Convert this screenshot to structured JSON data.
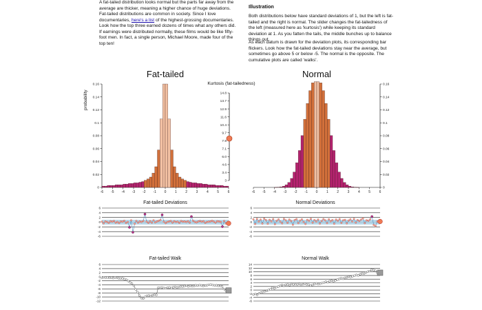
{
  "intro": {
    "p1": "A fat-tailed distribution looks normal but the parts far away from the average are thicker, meaning a higher chance of huge deviations.",
    "p2_before": "Fat-tailed distributions are common in society. Since I love documentaries,",
    "p2_link": "here's a list",
    "p2_after": "of the highest-grossing documentaries. Look how the top three earned dozens of times what any others did. If earnings were distributed normally, these films would be like fifty-foot men. In fact, a single person, Michael Moore, made four of the top ten!"
  },
  "illustration": {
    "heading": "Illustration",
    "p1": "Both distributions below have standard deviations of 1, but the left is fat-tailed and the right is normal. The slider changes the fat-tailedness of the left (measured here as 'kurtosis') while keeping its standard deviation at 1. As you fatten the tails, the middle bunches up to balance things out.",
    "p2": "As each datum is drawn for the deviation plots, its corresponding bar flickers. Look how the fat-tailed deviations stay near the average, but sometimes go above 5 or below -5. The normal is the opposite. The cumulative plots are called 'walks'."
  },
  "titles": {
    "fat": "Fat-tailed",
    "normal": "Normal",
    "kurtosis": "Kurtosis (fat-tailedness)",
    "fat_dev": "Fat-tailed Deviations",
    "normal_dev": "Normal Deviations",
    "fat_walk": "Fat-tailed Walk",
    "normal_walk": "Normal Walk"
  },
  "hist_ylabel": "probability",
  "slider": {
    "ticks": [
      "14.8",
      "13.7",
      "12.9",
      "11.6",
      "10.4",
      "9.7",
      "7.9",
      "7.1",
      "6.0",
      "4.6",
      "3.4",
      "3"
    ],
    "value": 8.4
  },
  "colors": {
    "bar_light": "#f3c1a3",
    "bar_mid": "#d2703a",
    "bar_dark": "#b4236f",
    "dev_band": "#a9cfe4",
    "dev_line": "#4f8fbf",
    "dot": "#b8348a",
    "walk_dot": "#9a9a9a",
    "handle": "#ef7a53"
  },
  "chart_data": [
    {
      "type": "bar",
      "name": "fat-tailed histogram",
      "title": "Fat-tailed",
      "ylabel": "probability",
      "xlim": [
        -6,
        6
      ],
      "ylim": [
        0,
        0.16
      ],
      "xticks": [
        "-6",
        "-5",
        "-4",
        "-3",
        "-2",
        "-1",
        "0",
        "1",
        "2",
        "3",
        "4",
        "5",
        "6"
      ],
      "yticks": [
        "0",
        "0.02",
        "0.04",
        "0.06",
        "0.08",
        "0.1",
        "0.12",
        "0.14",
        "0.16"
      ],
      "x": [
        -5.875,
        -5.625,
        -5.375,
        -5.125,
        -4.875,
        -4.625,
        -4.375,
        -4.125,
        -3.875,
        -3.625,
        -3.375,
        -3.125,
        -2.875,
        -2.625,
        -2.375,
        -2.125,
        -1.875,
        -1.625,
        -1.375,
        -1.125,
        -0.875,
        -0.625,
        -0.375,
        -0.125,
        0.125,
        0.375,
        0.625,
        0.875,
        1.125,
        1.375,
        1.625,
        1.875,
        2.125,
        2.375,
        2.625,
        2.875,
        3.125,
        3.375,
        3.625,
        3.875,
        4.125,
        4.375,
        4.625,
        4.875,
        5.125,
        5.375,
        5.625,
        5.875
      ],
      "values": [
        0.002,
        0.002,
        0.003,
        0.003,
        0.003,
        0.004,
        0.004,
        0.004,
        0.005,
        0.005,
        0.006,
        0.006,
        0.007,
        0.007,
        0.008,
        0.009,
        0.011,
        0.013,
        0.016,
        0.022,
        0.032,
        0.058,
        0.106,
        0.16,
        0.16,
        0.106,
        0.058,
        0.032,
        0.022,
        0.016,
        0.013,
        0.011,
        0.009,
        0.008,
        0.007,
        0.007,
        0.006,
        0.006,
        0.005,
        0.005,
        0.004,
        0.004,
        0.004,
        0.003,
        0.003,
        0.003,
        0.002,
        0.002
      ]
    },
    {
      "type": "bar",
      "name": "normal histogram",
      "title": "Normal",
      "xlim": [
        -6,
        6
      ],
      "ylim": [
        0,
        0.16
      ],
      "xticks": [
        "-6",
        "-5",
        "-4",
        "-3",
        "-2",
        "-1",
        "0",
        "1",
        "2",
        "3",
        "4",
        "5",
        "6"
      ],
      "yticks": [
        "0",
        "0.02",
        "0.04",
        "0.06",
        "0.08",
        "0.1",
        "0.12",
        "0.14",
        "0.16"
      ],
      "x": [
        -3.875,
        -3.625,
        -3.375,
        -3.125,
        -2.875,
        -2.625,
        -2.375,
        -2.125,
        -1.875,
        -1.625,
        -1.375,
        -1.125,
        -0.875,
        -0.625,
        -0.375,
        -0.125,
        0.125,
        0.375,
        0.625,
        0.875,
        1.125,
        1.375,
        1.625,
        1.875,
        2.125,
        2.375,
        2.625,
        2.875,
        3.125,
        3.375,
        3.625,
        3.875
      ],
      "values": [
        0.0001,
        0.0003,
        0.0008,
        0.0019,
        0.0039,
        0.0076,
        0.0139,
        0.0238,
        0.0381,
        0.0571,
        0.0802,
        0.1055,
        0.1299,
        0.1498,
        0.1618,
        0.1637,
        0.1637,
        0.1618,
        0.1498,
        0.1299,
        0.1055,
        0.0802,
        0.0571,
        0.0381,
        0.0238,
        0.0139,
        0.0076,
        0.0039,
        0.0019,
        0.0008,
        0.0003,
        0.0001
      ]
    },
    {
      "type": "line",
      "name": "fat-tailed deviations",
      "title": "Fat-tailed Deviations",
      "ylim": [
        -6,
        6
      ],
      "yticks": [
        "6",
        "4",
        "2",
        "0",
        "-2",
        "-4",
        "-6"
      ],
      "values": [
        0.2,
        -0.5,
        0.3,
        0.1,
        -0.3,
        0.4,
        0.2,
        0.5,
        -0.2,
        0.1,
        -0.4,
        0.3,
        0.2,
        0.6,
        -0.3,
        0.1,
        -2.2,
        0.8,
        -4.3,
        -0.7,
        0.5,
        -0.2,
        0.3,
        0.1,
        0.5,
        3.4,
        0.2,
        -0.3,
        0.4,
        -0.2,
        0.8,
        -0.1,
        0.3,
        0.6,
        0.9,
        3.1,
        0.2,
        -0.4,
        0.1,
        0.3,
        0.5,
        -0.2,
        0.4,
        0.1,
        0.2,
        -0.3,
        0.5,
        0.2,
        0.3,
        0.1,
        0.4,
        -0.2,
        2.4,
        0.6,
        0.1,
        -0.1,
        0.3,
        0.5,
        0.2,
        0.4,
        -0.3,
        0.1,
        0.2,
        0.3,
        0.6,
        0.2,
        -0.2,
        0.4,
        0.3,
        0.1,
        -1.9,
        0.5,
        -0.5
      ]
    },
    {
      "type": "line",
      "name": "normal deviations",
      "title": "Normal Deviations",
      "ylim": [
        -6,
        6
      ],
      "yticks": [
        "6",
        "4",
        "2",
        "0",
        "-2",
        "-4",
        "-6"
      ],
      "values": [
        1.2,
        -0.8,
        1.4,
        0.3,
        1.1,
        -0.6,
        1.5,
        0.9,
        -0.7,
        1.0,
        0.4,
        1.3,
        -0.9,
        0.6,
        1.2,
        0.2,
        -0.5,
        1.4,
        0.8,
        -0.3,
        1.1,
        0.5,
        -1.1,
        0.9,
        1.3,
        -0.4,
        0.7,
        1.2,
        0.1,
        -0.8,
        1.0,
        0.6,
        1.4,
        -0.2,
        0.9,
        0.3,
        1.1,
        -0.6,
        0.5,
        1.3,
        0.8,
        -0.4,
        1.2,
        0.4,
        0.9,
        -0.7,
        1.1,
        0.6,
        1.3,
        -0.3,
        0.8,
        1.0,
        -0.5,
        0.7,
        1.2,
        0.3,
        1.4,
        -0.2,
        0.9,
        0.5,
        1.1,
        1.6,
        -0.4,
        0.8,
        0.6,
        1.2,
        2.4,
        -1.2,
        -1.6,
        0.3
      ]
    },
    {
      "type": "line",
      "name": "fat-tailed walk",
      "title": "Fat-tailed Walk",
      "ylim": [
        -12,
        6
      ],
      "yticks": [
        "6",
        "4",
        "2",
        "0",
        "-2",
        "-4",
        "-6",
        "-8",
        "-10",
        "-12"
      ],
      "values": [
        -0.6,
        -0.3,
        -0.5,
        -0.4,
        -0.6,
        -0.5,
        -0.7,
        -0.4,
        -0.6,
        -0.8,
        -0.9,
        -0.8,
        -1.2,
        -1.5,
        -2.1,
        -2.8,
        -3.4,
        -4.5,
        -6.2,
        -7.6,
        -9.3,
        -10.6,
        -10.8,
        -9.9,
        -9.4,
        -9.2,
        -9.5,
        -9.1,
        -8.8,
        -9.0,
        -5.4,
        -5.5,
        -5.3,
        -5.6,
        -5.7,
        -5.4,
        -5.3,
        -5.6,
        -5.2,
        -5.0,
        -5.3,
        -5.1,
        -4.8,
        -4.9,
        -4.6,
        -4.4,
        -4.8,
        -4.5,
        -4.7,
        -4.6,
        -4.2,
        -4.4,
        -4.1,
        -4.3,
        -4.6,
        -4.4,
        -4.2,
        -4.0,
        -3.9,
        -4.1,
        -4.3,
        -4.2,
        -4.5,
        -4.6,
        -4.8,
        -6.1,
        -6.8
      ]
    },
    {
      "type": "line",
      "name": "normal walk",
      "title": "Normal Walk",
      "ylim": [
        -6,
        14
      ],
      "yticks": [
        "14",
        "12",
        "10",
        "8",
        "6",
        "4",
        "2",
        "0",
        "-2",
        "-4",
        "-6"
      ],
      "values": [
        -2.4,
        -2.1,
        -2.6,
        -1.7,
        -1.4,
        -1.0,
        -0.7,
        -0.5,
        0.1,
        0.4,
        1.4,
        0.9,
        1.6,
        1.9,
        2.4,
        2.8,
        2.4,
        2.9,
        3.1,
        2.7,
        3.3,
        3.0,
        3.2,
        3.0,
        3.4,
        2.9,
        3.2,
        3.5,
        3.1,
        3.0,
        2.5,
        2.8,
        3.4,
        3.7,
        3.3,
        3.5,
        3.9,
        4.1,
        4.6,
        4.3,
        4.9,
        5.2,
        4.8,
        5.3,
        5.7,
        6.1,
        6.5,
        6.2,
        6.7,
        7.0,
        7.4,
        7.2,
        7.6,
        7.9,
        8.3,
        8.0,
        8.7,
        9.2,
        9.0,
        9.6,
        10.1,
        10.4,
        11.2,
        11.0,
        10.6,
        9.5
      ]
    }
  ]
}
